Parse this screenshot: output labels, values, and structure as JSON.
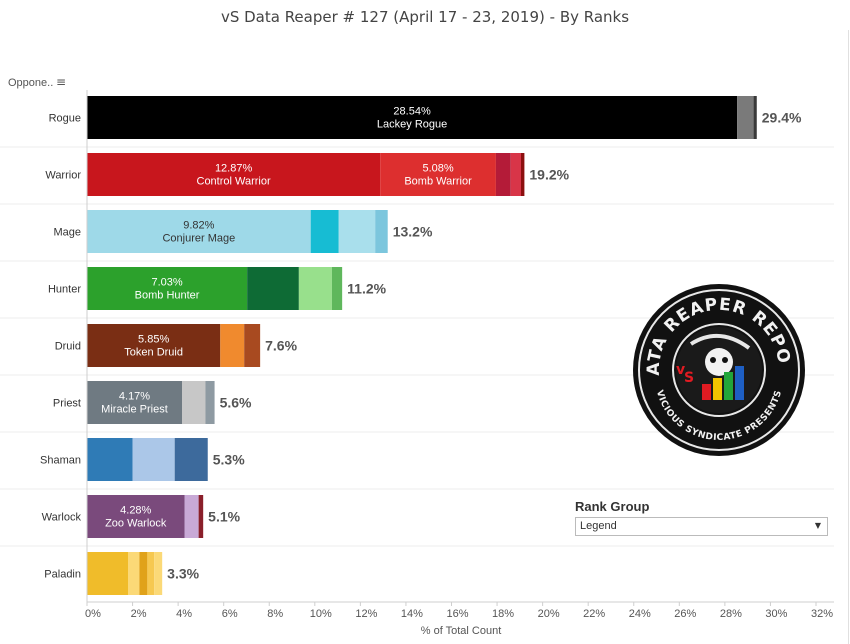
{
  "title": "vS Data Reaper #  127 (April 17 - 23, 2019) - By Ranks",
  "sort_label": "Oppone..",
  "sort_icon": "sort-icon",
  "rank_group": {
    "title": "Rank Group",
    "value": "Legend"
  },
  "logo": {
    "top_text": "DATA REAPER REPORT",
    "bottom_text": "VICIOUS SYNDICATE PRESENTS"
  },
  "chart_data": {
    "type": "bar",
    "orientation": "horizontal",
    "stacked": true,
    "xlabel": "% of Total Count",
    "ylabel": "",
    "xlim": [
      0,
      32
    ],
    "x_ticks": [
      "0%",
      "2%",
      "4%",
      "6%",
      "8%",
      "10%",
      "12%",
      "14%",
      "16%",
      "18%",
      "20%",
      "22%",
      "24%",
      "26%",
      "28%",
      "30%",
      "32%"
    ],
    "grid": false,
    "categories": [
      {
        "name": "Rogue",
        "total_label": "29.4%",
        "segments": [
          {
            "value": 28.54,
            "color": "#000000",
            "pct": "28.54%",
            "archetype": "Lackey Rogue"
          },
          {
            "value": 0.72,
            "color": "#7a7a7a"
          },
          {
            "value": 0.14,
            "color": "#3a3a3a"
          }
        ]
      },
      {
        "name": "Warrior",
        "total_label": "19.2%",
        "segments": [
          {
            "value": 12.87,
            "color": "#c8161d",
            "pct": "12.87%",
            "archetype": "Control Warrior"
          },
          {
            "value": 5.08,
            "color": "#dd2f2f",
            "pct": "5.08%",
            "archetype": "Bomb Warrior"
          },
          {
            "value": 0.65,
            "color": "#b41b38"
          },
          {
            "value": 0.45,
            "color": "#d83548"
          },
          {
            "value": 0.15,
            "color": "#8c0f0f"
          }
        ]
      },
      {
        "name": "Mage",
        "total_label": "13.2%",
        "segments": [
          {
            "value": 9.82,
            "color": "#9ed9e8",
            "pct": "9.82%",
            "archetype": "Conjurer Mage"
          },
          {
            "value": 1.23,
            "color": "#17bcd3"
          },
          {
            "value": 1.6,
            "color": "#a9dfec"
          },
          {
            "value": 0.55,
            "color": "#7cc6dd"
          }
        ]
      },
      {
        "name": "Hunter",
        "total_label": "11.2%",
        "segments": [
          {
            "value": 7.03,
            "color": "#2ca12c",
            "pct": "7.03%",
            "archetype": "Bomb Hunter"
          },
          {
            "value": 2.27,
            "color": "#0e6b35"
          },
          {
            "value": 1.45,
            "color": "#98e08c"
          },
          {
            "value": 0.45,
            "color": "#5fb75c"
          }
        ]
      },
      {
        "name": "Druid",
        "total_label": "7.6%",
        "segments": [
          {
            "value": 5.85,
            "color": "#7a2e14",
            "pct": "5.85%",
            "archetype": "Token Druid"
          },
          {
            "value": 1.05,
            "color": "#f08a2e"
          },
          {
            "value": 0.7,
            "color": "#a84a20"
          }
        ]
      },
      {
        "name": "Priest",
        "total_label": "5.6%",
        "segments": [
          {
            "value": 4.17,
            "color": "#6f7a82",
            "pct": "4.17%",
            "archetype": "Miracle Priest"
          },
          {
            "value": 1.03,
            "color": "#c7c7c7"
          },
          {
            "value": 0.4,
            "color": "#8e9aa2"
          }
        ]
      },
      {
        "name": "Shaman",
        "total_label": "5.3%",
        "segments": [
          {
            "value": 2.0,
            "color": "#2f7bb6"
          },
          {
            "value": 1.85,
            "color": "#abc7e8"
          },
          {
            "value": 1.45,
            "color": "#3d6a9c"
          }
        ]
      },
      {
        "name": "Warlock",
        "total_label": "5.1%",
        "segments": [
          {
            "value": 4.28,
            "color": "#7a4a7c",
            "pct": "4.28%",
            "archetype": "Zoo Warlock"
          },
          {
            "value": 0.62,
            "color": "#c8a9d6"
          },
          {
            "value": 0.2,
            "color": "#8a1f2a"
          }
        ]
      },
      {
        "name": "Paladin",
        "total_label": "3.3%",
        "segments": [
          {
            "value": 1.8,
            "color": "#f0bc2a"
          },
          {
            "value": 0.5,
            "color": "#fbd977"
          },
          {
            "value": 0.35,
            "color": "#e0a21a"
          },
          {
            "value": 0.3,
            "color": "#f6c850"
          },
          {
            "value": 0.35,
            "color": "#fbd977"
          }
        ]
      }
    ]
  }
}
